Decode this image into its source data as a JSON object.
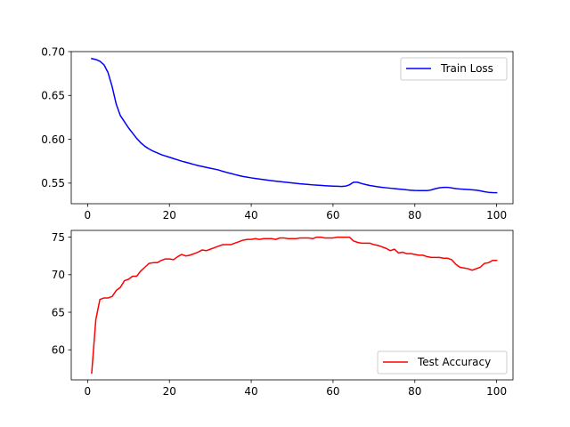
{
  "chart_data": [
    {
      "type": "line",
      "legend_position": "top-right",
      "grid": false,
      "xlim": [
        -4,
        104
      ],
      "ylim": [
        0.5265,
        0.7
      ],
      "x_ticks": [
        0,
        20,
        40,
        60,
        80,
        100
      ],
      "y_ticks": [
        0.55,
        0.6,
        0.65,
        0.7
      ],
      "x_tick_labels": [
        "0",
        "20",
        "40",
        "60",
        "80",
        "100"
      ],
      "y_tick_labels": [
        "0.55",
        "0.60",
        "0.65",
        "0.70"
      ],
      "series": [
        {
          "name": "Train Loss",
          "color": "#0000ff",
          "x": [
            1,
            2,
            3,
            4,
            5,
            6,
            7,
            8,
            9,
            10,
            11,
            12,
            13,
            14,
            15,
            16,
            17,
            18,
            19,
            20,
            21,
            22,
            23,
            24,
            25,
            26,
            27,
            28,
            29,
            30,
            31,
            32,
            33,
            34,
            35,
            36,
            37,
            38,
            39,
            40,
            41,
            42,
            43,
            44,
            45,
            46,
            47,
            48,
            49,
            50,
            51,
            52,
            53,
            54,
            55,
            56,
            57,
            58,
            59,
            60,
            61,
            62,
            63,
            64,
            65,
            66,
            67,
            68,
            69,
            70,
            71,
            72,
            73,
            74,
            75,
            76,
            77,
            78,
            79,
            80,
            81,
            82,
            83,
            84,
            85,
            86,
            87,
            88,
            89,
            90,
            91,
            92,
            93,
            94,
            95,
            96,
            97,
            98,
            99,
            100
          ],
          "y": [
            0.692,
            0.691,
            0.689,
            0.685,
            0.676,
            0.66,
            0.64,
            0.627,
            0.62,
            0.613,
            0.607,
            0.601,
            0.596,
            0.592,
            0.589,
            0.5865,
            0.5845,
            0.5825,
            0.581,
            0.5795,
            0.578,
            0.5765,
            0.575,
            0.5738,
            0.5725,
            0.5712,
            0.57,
            0.569,
            0.568,
            0.567,
            0.566,
            0.565,
            0.5635,
            0.5622,
            0.561,
            0.5598,
            0.5586,
            0.5576,
            0.5568,
            0.556,
            0.5553,
            0.5546,
            0.554,
            0.5534,
            0.5528,
            0.5522,
            0.5517,
            0.5512,
            0.5507,
            0.5502,
            0.5497,
            0.5492,
            0.5488,
            0.5484,
            0.548,
            0.5477,
            0.5474,
            0.5471,
            0.5468,
            0.5466,
            0.5464,
            0.5462,
            0.5465,
            0.548,
            0.551,
            0.551,
            0.5495,
            0.5483,
            0.5473,
            0.5465,
            0.5458,
            0.5452,
            0.5447,
            0.5442,
            0.5437,
            0.5432,
            0.5428,
            0.5423,
            0.5419,
            0.5416,
            0.5415,
            0.5414,
            0.5414,
            0.5422,
            0.5436,
            0.5446,
            0.5451,
            0.5452,
            0.5445,
            0.5437,
            0.5433,
            0.543,
            0.5427,
            0.5424,
            0.542,
            0.5412,
            0.5402,
            0.5395,
            0.5392,
            0.5391
          ]
        }
      ]
    },
    {
      "type": "line",
      "legend_position": "bottom-right",
      "grid": false,
      "xlim": [
        -4,
        104
      ],
      "ylim": [
        56.0,
        75.9
      ],
      "x_ticks": [
        0,
        20,
        40,
        60,
        80,
        100
      ],
      "y_ticks": [
        60,
        65,
        70,
        75
      ],
      "x_tick_labels": [
        "0",
        "20",
        "40",
        "60",
        "80",
        "100"
      ],
      "y_tick_labels": [
        "60",
        "65",
        "70",
        "75"
      ],
      "series": [
        {
          "name": "Test Accuracy",
          "color": "#ff0000",
          "x": [
            1,
            2,
            3,
            4,
            5,
            6,
            7,
            8,
            9,
            10,
            11,
            12,
            13,
            14,
            15,
            16,
            17,
            18,
            19,
            20,
            21,
            22,
            23,
            24,
            25,
            26,
            27,
            28,
            29,
            30,
            31,
            32,
            33,
            34,
            35,
            36,
            37,
            38,
            39,
            40,
            41,
            42,
            43,
            44,
            45,
            46,
            47,
            48,
            49,
            50,
            51,
            52,
            53,
            54,
            55,
            56,
            57,
            58,
            59,
            60,
            61,
            62,
            63,
            64,
            65,
            66,
            67,
            68,
            69,
            70,
            71,
            72,
            73,
            74,
            75,
            76,
            77,
            78,
            79,
            80,
            81,
            82,
            83,
            84,
            85,
            86,
            87,
            88,
            89,
            90,
            91,
            92,
            93,
            94,
            95,
            96,
            97,
            98,
            99,
            100
          ],
          "y": [
            56.9,
            64.0,
            66.7,
            66.9,
            66.9,
            67.1,
            67.9,
            68.3,
            69.2,
            69.4,
            69.8,
            69.8,
            70.5,
            71.0,
            71.5,
            71.6,
            71.6,
            71.9,
            72.1,
            72.1,
            72.0,
            72.4,
            72.7,
            72.5,
            72.6,
            72.8,
            73.0,
            73.3,
            73.2,
            73.4,
            73.6,
            73.8,
            74.0,
            74.0,
            74.0,
            74.2,
            74.4,
            74.6,
            74.7,
            74.7,
            74.8,
            74.7,
            74.8,
            74.8,
            74.8,
            74.7,
            74.9,
            74.9,
            74.8,
            74.8,
            74.8,
            74.9,
            74.9,
            74.9,
            74.8,
            75.0,
            75.0,
            74.9,
            74.9,
            74.9,
            75.0,
            75.0,
            75.0,
            75.0,
            74.5,
            74.3,
            74.2,
            74.2,
            74.2,
            74.0,
            73.9,
            73.7,
            73.5,
            73.2,
            73.4,
            72.9,
            73.0,
            72.8,
            72.8,
            72.7,
            72.6,
            72.6,
            72.4,
            72.3,
            72.3,
            72.3,
            72.2,
            72.2,
            72.0,
            71.4,
            71.0,
            70.9,
            70.8,
            70.6,
            70.8,
            71.0,
            71.5,
            71.6,
            71.9,
            71.9
          ]
        }
      ]
    }
  ]
}
